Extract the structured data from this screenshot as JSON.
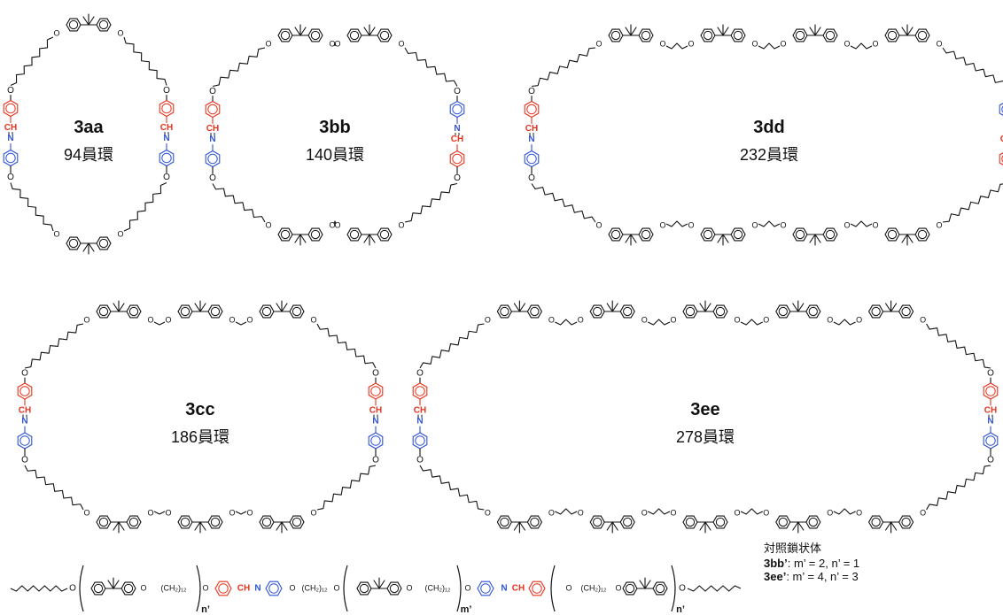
{
  "colors": {
    "bond": "#111111",
    "imine_ch": "#e8321c",
    "imine_n": "#2f52d6"
  },
  "atoms": {
    "o": "O",
    "ch": "CH",
    "n": "N",
    "chain": "(CH₂)₁₂"
  },
  "macrocycles": [
    {
      "compound": "3aa",
      "ring_size": "94員環"
    },
    {
      "compound": "3bb",
      "ring_size": "140員環"
    },
    {
      "compound": "3dd",
      "ring_size": "232員環"
    },
    {
      "compound": "3cc",
      "ring_size": "186員環"
    },
    {
      "compound": "3ee",
      "ring_size": "278員環"
    }
  ],
  "linear_chain": {
    "repeat_labels": [
      "n’",
      "m’",
      "n’"
    ],
    "title": "対照鎖状体",
    "entries": [
      {
        "compound": "3bb’",
        "values": ": m’ = 2, n’ = 1"
      },
      {
        "compound": "3ee’",
        "values": ": m’ = 4, n’ = 3"
      }
    ]
  }
}
